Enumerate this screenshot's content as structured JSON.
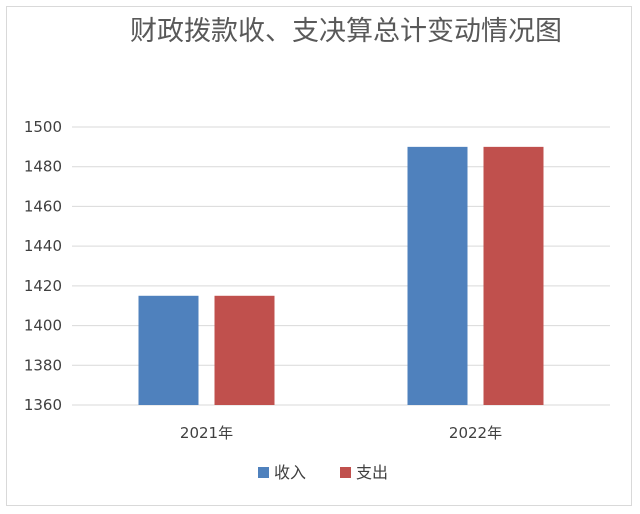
{
  "chart_data": {
    "type": "bar",
    "title": "财政拨款收、支决算总计变动情况图",
    "categories": [
      "2021年",
      "2022年"
    ],
    "series": [
      {
        "name": "收入",
        "color": "#4f81bd",
        "values": [
          1415,
          1490
        ]
      },
      {
        "name": "支出",
        "color": "#c0504d",
        "values": [
          1415,
          1490
        ]
      }
    ],
    "ylim": [
      1360,
      1500
    ],
    "yticks": [
      1360,
      1380,
      1400,
      1420,
      1440,
      1460,
      1480,
      1500
    ],
    "grid": true,
    "legend_position": "bottom",
    "xlabel": "",
    "ylabel": ""
  }
}
